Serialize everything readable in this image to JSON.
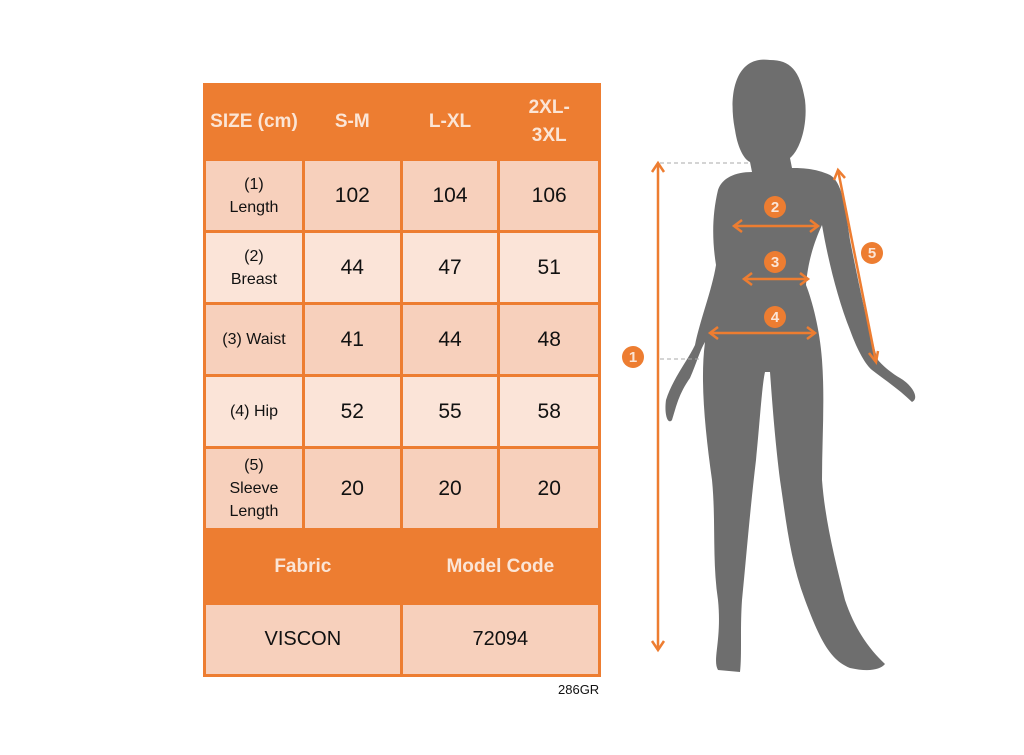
{
  "table": {
    "header": [
      "SIZE (cm)",
      "S-M",
      "L-XL",
      "2XL-3XL"
    ],
    "rows": [
      {
        "label": "(1) Length",
        "values": [
          "102",
          "104",
          "106"
        ]
      },
      {
        "label": "(2) Breast",
        "values": [
          "44",
          "47",
          "51"
        ]
      },
      {
        "label": "(3) Waist",
        "values": [
          "41",
          "44",
          "48"
        ]
      },
      {
        "label": "(4) Hip",
        "values": [
          "52",
          "55",
          "58"
        ]
      },
      {
        "label": "(5) Sleeve Length",
        "values": [
          "20",
          "20",
          "20"
        ]
      }
    ],
    "fabric_label": "Fabric",
    "model_code_label": "Model Code",
    "fabric": "VISCON",
    "model_code": "72094"
  },
  "code": "286GR",
  "markers": [
    "1",
    "2",
    "3",
    "4",
    "5"
  ],
  "colors": {
    "accent": "#ED7D31",
    "silhouette": "#6E6E6E",
    "cell_dark": "#F7D0BC",
    "cell_light": "#FBE4D8"
  }
}
